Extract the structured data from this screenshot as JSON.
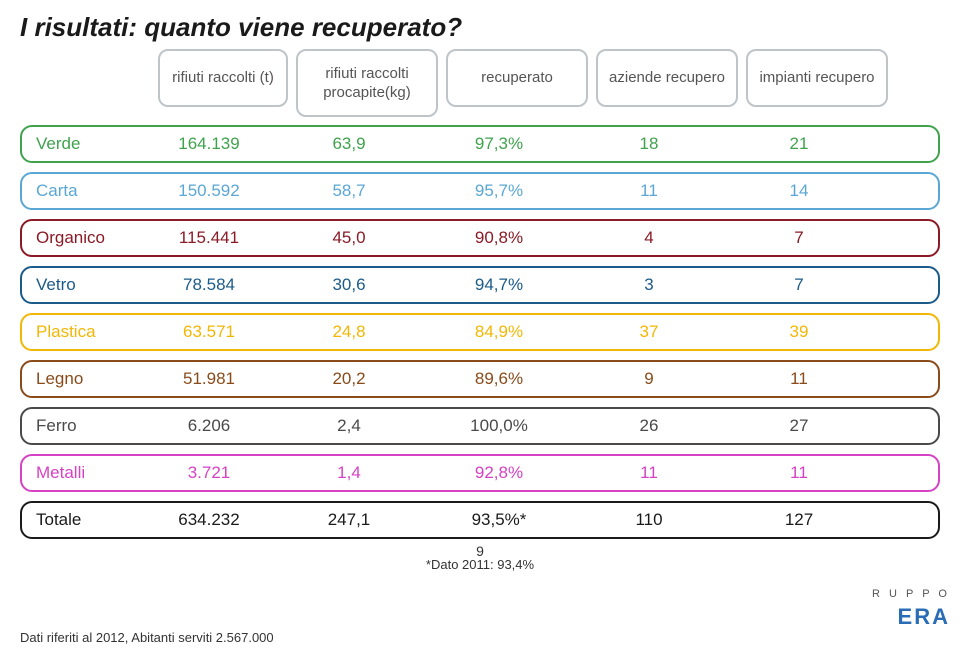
{
  "title": "I risultati: quanto viene recuperato?",
  "headers": {
    "h1": "rifiuti raccolti (t)",
    "h2": "rifiuti raccolti procapite(kg)",
    "h3": "recuperato",
    "h4": "aziende recupero",
    "h5": "impianti recupero",
    "border": "#bfc4c9"
  },
  "rows": [
    {
      "label": "Verde",
      "v1": "164.139",
      "v2": "63,9",
      "v3": "97,3%",
      "v4": "18",
      "v5": "21",
      "color": "#3fa34d"
    },
    {
      "label": "Carta",
      "v1": "150.592",
      "v2": "58,7",
      "v3": "95,7%",
      "v4": "11",
      "v5": "14",
      "color": "#5aa7d6"
    },
    {
      "label": "Organico",
      "v1": "115.441",
      "v2": "45,0",
      "v3": "90,8%",
      "v4": "4",
      "v5": "7",
      "color": "#8a1b26"
    },
    {
      "label": "Vetro",
      "v1": "78.584",
      "v2": "30,6",
      "v3": "94,7%",
      "v4": "3",
      "v5": "7",
      "color": "#1b5b8a"
    },
    {
      "label": "Plastica",
      "v1": "63.571",
      "v2": "24,8",
      "v3": "84,9%",
      "v4": "37",
      "v5": "39",
      "color": "#f2b705"
    },
    {
      "label": "Legno",
      "v1": "51.981",
      "v2": "20,2",
      "v3": "89,6%",
      "v4": "9",
      "v5": "11",
      "color": "#8a4b1b"
    },
    {
      "label": "Ferro",
      "v1": "6.206",
      "v2": "2,4",
      "v3": "100,0%",
      "v4": "26",
      "v5": "27",
      "color": "#4a4a4a"
    },
    {
      "label": "Metalli",
      "v1": "3.721",
      "v2": "1,4",
      "v3": "92,8%",
      "v4": "11",
      "v5": "11",
      "color": "#d542c4"
    },
    {
      "label": "Totale",
      "v1": "634.232",
      "v2": "247,1",
      "v3": "93,5%*",
      "v4": "110",
      "v5": "127",
      "color": "#1a1a1a"
    }
  ],
  "page_number": "9",
  "footer_left": "Dati riferiti al 2012, Abitanti serviti 2.567.000",
  "ref_note": "*Dato 2011: 93,4%",
  "logo_top": "R U P P O",
  "logo_main": "ERA"
}
